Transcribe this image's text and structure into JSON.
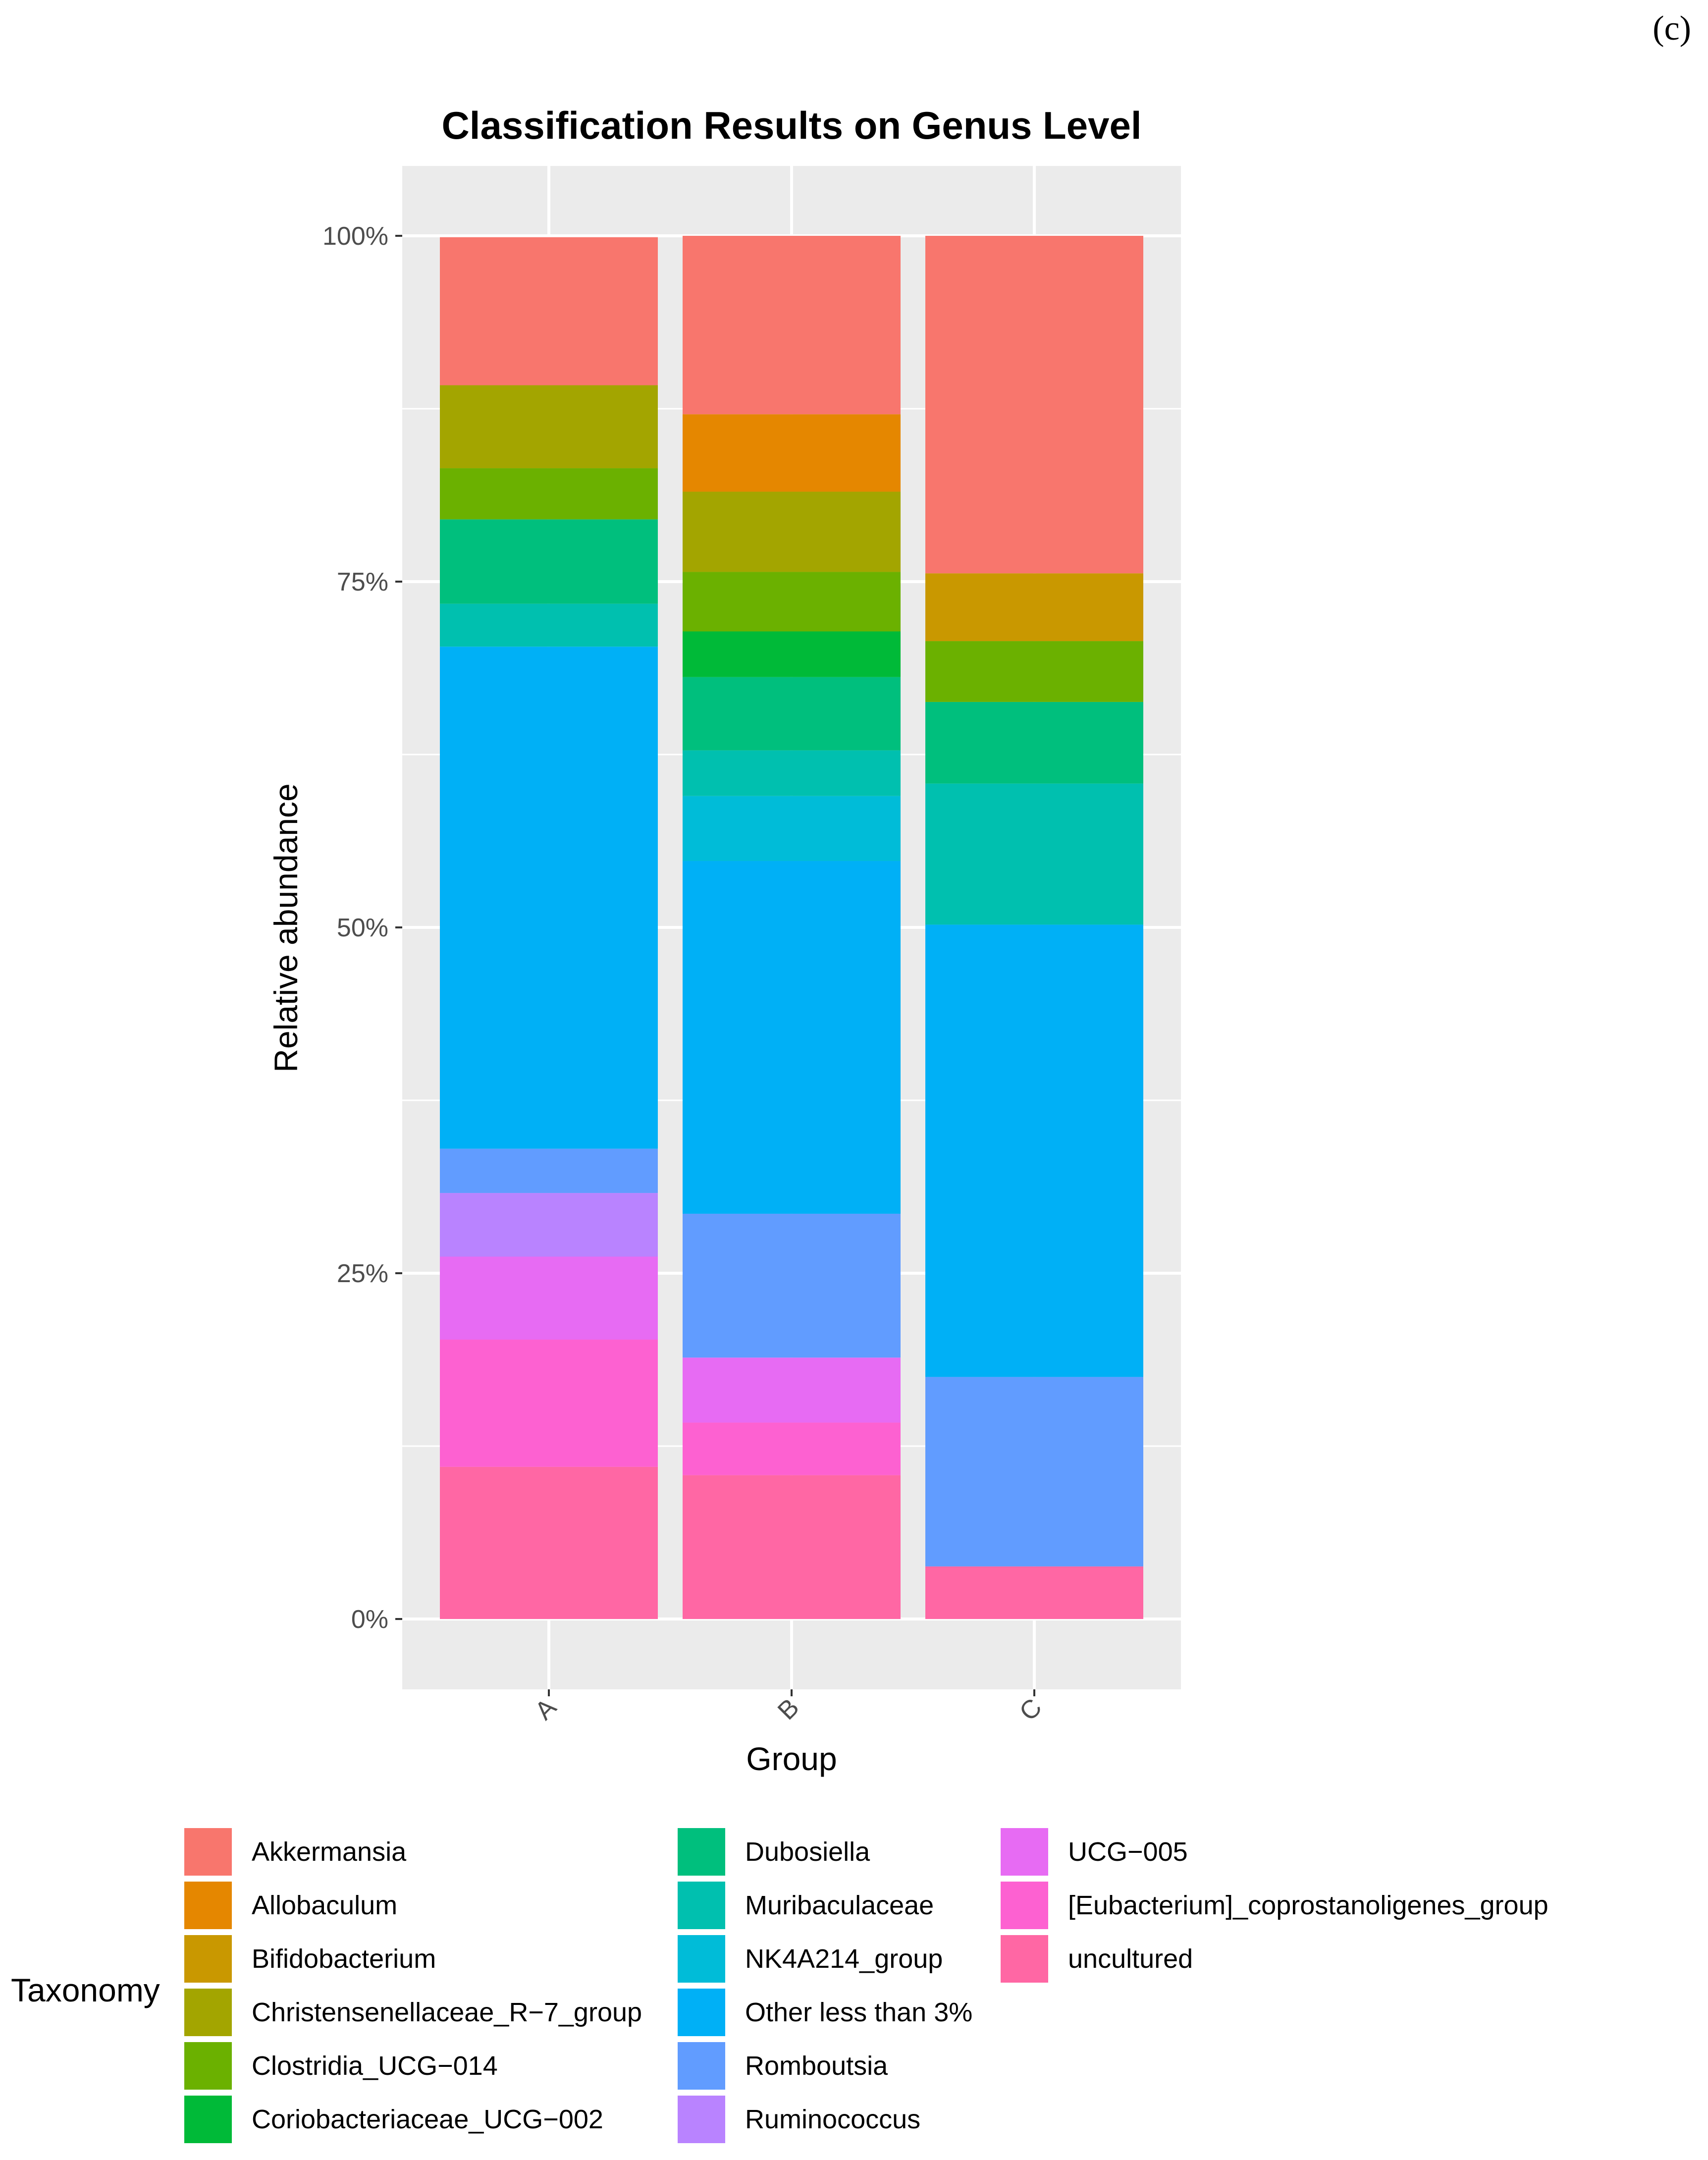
{
  "panel_label": "(c)",
  "chart_data": {
    "type": "bar",
    "stacked": true,
    "title": "Classification Results on Genus Level",
    "xlabel": "Group",
    "ylabel": "Relative abundance",
    "categories": [
      "A",
      "B",
      "C"
    ],
    "ylim": [
      0,
      1
    ],
    "yticks": [
      {
        "value": 0,
        "label": "0%"
      },
      {
        "value": 0.25,
        "label": "25%"
      },
      {
        "value": 0.5,
        "label": "50%"
      },
      {
        "value": 0.75,
        "label": "75%"
      },
      {
        "value": 1.0,
        "label": "100%"
      }
    ],
    "grid": true,
    "legend_title": "Taxonomy",
    "legend_position": "bottom",
    "series": [
      {
        "name": "Akkermansia",
        "color": "#F8766D",
        "values": [
          0.107,
          0.129,
          0.244
        ]
      },
      {
        "name": "Allobaculum",
        "color": "#E58700",
        "values": [
          0.0,
          0.056,
          0.0
        ]
      },
      {
        "name": "Bifidobacterium",
        "color": "#C99800",
        "values": [
          0.0,
          0.0,
          0.049
        ]
      },
      {
        "name": "Christensenellaceae_R−7_group",
        "color": "#A3A500",
        "values": [
          0.06,
          0.058,
          0.0
        ]
      },
      {
        "name": "Clostridia_UCG−014",
        "color": "#6BB100",
        "values": [
          0.037,
          0.043,
          0.044
        ]
      },
      {
        "name": "Coriobacteriaceae_UCG−002",
        "color": "#00BA38",
        "values": [
          0.0,
          0.033,
          0.0
        ]
      },
      {
        "name": "Dubosiella",
        "color": "#00BF7D",
        "values": [
          0.061,
          0.053,
          0.059
        ]
      },
      {
        "name": "Muribaculaceae",
        "color": "#00C0AF",
        "values": [
          0.031,
          0.033,
          0.102
        ]
      },
      {
        "name": "NK4A214_group",
        "color": "#00BCD8",
        "values": [
          0.0,
          0.047,
          0.0
        ]
      },
      {
        "name": "Other less than 3%",
        "color": "#00B0F6",
        "values": [
          0.363,
          0.255,
          0.327
        ]
      },
      {
        "name": "Romboutsia",
        "color": "#619CFF",
        "values": [
          0.032,
          0.104,
          0.137
        ]
      },
      {
        "name": "Ruminococcus",
        "color": "#B983FF",
        "values": [
          0.046,
          0.0,
          0.0
        ]
      },
      {
        "name": "UCG−005",
        "color": "#E76BF3",
        "values": [
          0.06,
          0.047,
          0.0
        ]
      },
      {
        "name": "[Eubacterium]_coprostanoligenes_group",
        "color": "#FD61D1",
        "values": [
          0.092,
          0.038,
          0.0
        ]
      },
      {
        "name": "uncultured",
        "color": "#FF67A4",
        "values": [
          0.11,
          0.104,
          0.038
        ]
      }
    ]
  }
}
